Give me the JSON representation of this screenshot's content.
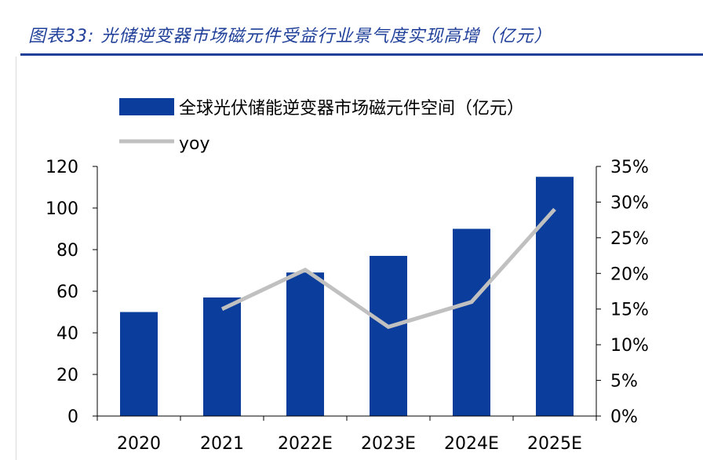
{
  "header": {
    "title": "图表33:  光储逆变器市场磁元件受益行业景气度实现高增（亿元）"
  },
  "colors": {
    "bar": "#0a3d9c",
    "line": "#c0c0c0",
    "title": "#1f3f99"
  },
  "chart_data": {
    "type": "bar",
    "categories": [
      "2020",
      "2021",
      "2022E",
      "2023E",
      "2024E",
      "2025E"
    ],
    "series": [
      {
        "name": "全球光伏储能逆变器市场磁元件空间（亿元）",
        "type": "bar",
        "axis": "left",
        "values": [
          50,
          57,
          69,
          77,
          90,
          115
        ]
      },
      {
        "name": "yoy",
        "type": "line",
        "axis": "right",
        "values": [
          null,
          15,
          20.5,
          12.5,
          16,
          29
        ]
      }
    ],
    "y_left": {
      "min": 0,
      "max": 120,
      "step": 20,
      "ticks": [
        "0",
        "20",
        "40",
        "60",
        "80",
        "100",
        "120"
      ]
    },
    "y_right": {
      "min": 0,
      "max": 35,
      "step": 5,
      "ticks": [
        "0%",
        "5%",
        "10%",
        "15%",
        "20%",
        "25%",
        "30%",
        "35%"
      ]
    },
    "legend": {
      "position": "top-left"
    }
  }
}
